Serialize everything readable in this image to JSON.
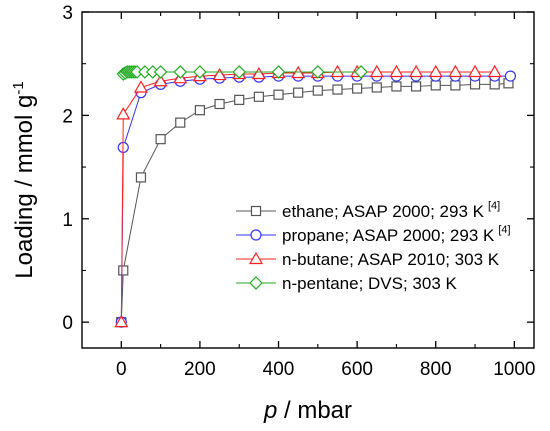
{
  "chart_data": {
    "type": "line",
    "title": "",
    "xlabel_italic": "p",
    "xlabel_rest": " / mbar",
    "ylabel_main": "Loading / mmol g",
    "ylabel_sup": "-1",
    "xlim": [
      -100,
      1050
    ],
    "ylim": [
      -0.25,
      3
    ],
    "xticks": [
      0,
      200,
      400,
      600,
      800,
      1000
    ],
    "yticks": [
      0,
      1,
      2,
      3
    ],
    "xtick_labels": [
      "0",
      "200",
      "400",
      "600",
      "800",
      "1000"
    ],
    "ytick_labels": [
      "0",
      "1",
      "2",
      "3"
    ],
    "legend_position": "center-right",
    "series": [
      {
        "name": "ethane; ASAP 2000; 293 K",
        "ref": "[4]",
        "color": "#555555",
        "marker": "square",
        "x": [
          0,
          5,
          50,
          100,
          150,
          200,
          250,
          300,
          350,
          400,
          450,
          500,
          550,
          600,
          650,
          700,
          750,
          800,
          850,
          900,
          950,
          985
        ],
        "y": [
          0,
          0.5,
          1.4,
          1.77,
          1.93,
          2.05,
          2.11,
          2.15,
          2.18,
          2.2,
          2.22,
          2.24,
          2.25,
          2.26,
          2.27,
          2.28,
          2.28,
          2.29,
          2.29,
          2.3,
          2.3,
          2.31
        ]
      },
      {
        "name": "propane; ASAP 2000; 293 K",
        "ref": "[4]",
        "color": "#3333ff",
        "marker": "circle",
        "x": [
          0,
          5,
          50,
          100,
          150,
          200,
          250,
          300,
          350,
          400,
          450,
          500,
          550,
          600,
          650,
          700,
          750,
          800,
          850,
          900,
          950,
          990
        ],
        "y": [
          0,
          1.69,
          2.22,
          2.3,
          2.33,
          2.35,
          2.36,
          2.37,
          2.37,
          2.38,
          2.38,
          2.38,
          2.38,
          2.38,
          2.38,
          2.38,
          2.38,
          2.38,
          2.38,
          2.38,
          2.38,
          2.38
        ]
      },
      {
        "name": "n-butane; ASAP 2010; 303 K",
        "ref": "",
        "color": "#ff2222",
        "marker": "triangle",
        "x": [
          0,
          5,
          50,
          100,
          150,
          200,
          250,
          300,
          350,
          400,
          450,
          500,
          550,
          600,
          650,
          700,
          750,
          800,
          850,
          900,
          950
        ],
        "y": [
          0,
          2.01,
          2.27,
          2.33,
          2.36,
          2.38,
          2.39,
          2.4,
          2.4,
          2.41,
          2.41,
          2.41,
          2.42,
          2.42,
          2.42,
          2.42,
          2.42,
          2.42,
          2.42,
          2.42,
          2.42
        ]
      },
      {
        "name": "n-pentane; DVS; 303 K",
        "ref": "",
        "color": "#22aa22",
        "marker": "diamond",
        "x": [
          5,
          10,
          15,
          20,
          25,
          30,
          35,
          40,
          60,
          80,
          100,
          150,
          200,
          300,
          400,
          500,
          610
        ],
        "y": [
          2.4,
          2.41,
          2.42,
          2.42,
          2.42,
          2.42,
          2.42,
          2.42,
          2.42,
          2.42,
          2.42,
          2.42,
          2.42,
          2.42,
          2.42,
          2.42,
          2.42
        ]
      }
    ]
  }
}
